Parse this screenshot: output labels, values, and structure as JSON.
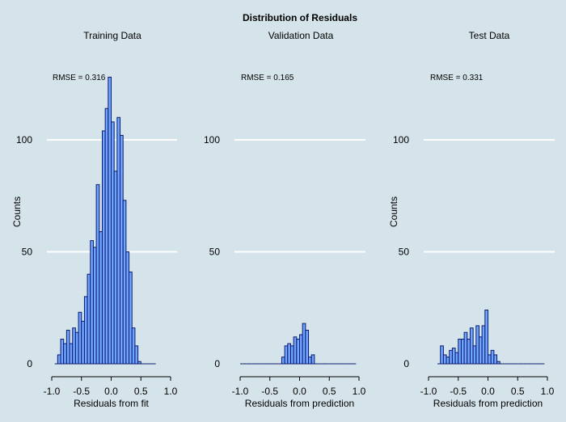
{
  "colors": {
    "background": "#d5e3ea",
    "bar_fill": "#6fa4ff",
    "bar_stroke": "#0a1a6e",
    "grid": "#ffffff",
    "axis": "#000000",
    "text": "#000000"
  },
  "chart_data": {
    "title": "Distribution of Residuals",
    "ylim": [
      0,
      130
    ],
    "grid": "horizontal",
    "panels": [
      {
        "type": "bar",
        "title": "Training Data",
        "annotation": "RMSE = 0.316",
        "xlabel": "Residuals from fit",
        "ylabel": "Counts",
        "xlim": [
          -1.0,
          1.0
        ],
        "xticks": [
          "-1.0",
          "-0.5",
          "0.0",
          "0.5",
          "1.0"
        ],
        "yticks": [
          0,
          50,
          100
        ],
        "bin_width": 0.05,
        "x": [
          -0.95,
          -0.9,
          -0.85,
          -0.8,
          -0.75,
          -0.7,
          -0.65,
          -0.6,
          -0.55,
          -0.5,
          -0.45,
          -0.4,
          -0.35,
          -0.3,
          -0.25,
          -0.2,
          -0.15,
          -0.1,
          -0.05,
          0.0,
          0.05,
          0.1,
          0.15,
          0.2,
          0.25,
          0.3,
          0.35,
          0.4,
          0.45,
          0.5,
          0.55,
          0.6,
          0.65,
          0.7
        ],
        "values": [
          0,
          4,
          11,
          9,
          15,
          9,
          16,
          14,
          23,
          19,
          30,
          40,
          55,
          52,
          80,
          59,
          104,
          114,
          128,
          108,
          86,
          110,
          102,
          73,
          50,
          41,
          16,
          8,
          1,
          0,
          0,
          0,
          0,
          0
        ]
      },
      {
        "type": "bar",
        "title": "Validation Data",
        "annotation": "RMSE = 0.165",
        "xlabel": "Residuals from prediction",
        "ylabel": "",
        "xlim": [
          -1.0,
          1.0
        ],
        "xticks": [
          "-1.0",
          "-0.5",
          "0.0",
          "0.5",
          "1.0"
        ],
        "yticks": [
          0,
          50,
          100
        ],
        "bin_width": 0.05,
        "x": [
          -1.0,
          -0.95,
          -0.9,
          -0.85,
          -0.8,
          -0.75,
          -0.7,
          -0.65,
          -0.6,
          -0.55,
          -0.5,
          -0.45,
          -0.4,
          -0.35,
          -0.3,
          -0.25,
          -0.2,
          -0.15,
          -0.1,
          -0.05,
          0.0,
          0.05,
          0.1,
          0.15,
          0.2,
          0.25,
          0.3,
          0.35,
          0.4,
          0.45,
          0.5,
          0.55,
          0.6,
          0.65,
          0.7,
          0.75,
          0.8,
          0.85,
          0.9
        ],
        "values": [
          0,
          0,
          0,
          0,
          0,
          0,
          0,
          0,
          0,
          0,
          0,
          0,
          0,
          0,
          3,
          8,
          9,
          8,
          12,
          11,
          13,
          18,
          15,
          3,
          4,
          0,
          0,
          0,
          0,
          0,
          0,
          0,
          0,
          0,
          0,
          0,
          0,
          0,
          0
        ]
      },
      {
        "type": "bar",
        "title": "Test Data",
        "annotation": "RMSE = 0.331",
        "xlabel": "Residuals from prediction",
        "ylabel": "Counts",
        "xlim": [
          -1.0,
          1.0
        ],
        "xticks": [
          "-1.0",
          "-0.5",
          "0.0",
          "0.5",
          "1.0"
        ],
        "yticks": [
          0,
          50,
          100
        ],
        "bin_width": 0.05,
        "x": [
          -0.85,
          -0.8,
          -0.75,
          -0.7,
          -0.65,
          -0.6,
          -0.55,
          -0.5,
          -0.45,
          -0.4,
          -0.35,
          -0.3,
          -0.25,
          -0.2,
          -0.15,
          -0.1,
          -0.05,
          0.0,
          0.05,
          0.1,
          0.15,
          0.2,
          0.25,
          0.3,
          0.35,
          0.4,
          0.45,
          0.5,
          0.55,
          0.6,
          0.65,
          0.7,
          0.75,
          0.8,
          0.85,
          0.9
        ],
        "values": [
          0,
          8,
          4,
          3,
          6,
          7,
          5,
          11,
          11,
          14,
          11,
          16,
          8,
          17,
          12,
          17,
          24,
          4,
          6,
          4,
          1,
          0,
          0,
          0,
          0,
          0,
          0,
          0,
          0,
          0,
          0,
          0,
          0,
          0,
          0,
          0
        ]
      }
    ]
  }
}
